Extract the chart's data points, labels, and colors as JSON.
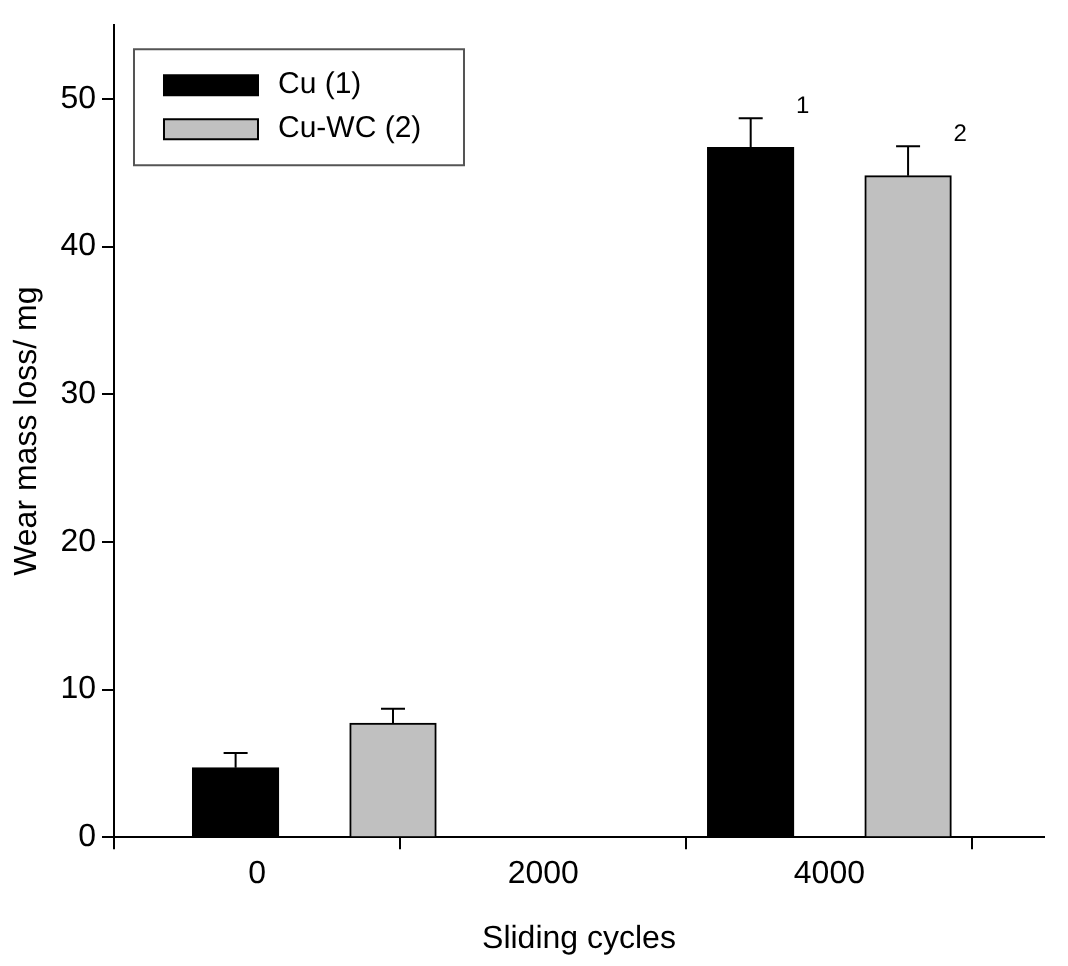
{
  "chart_data": {
    "type": "bar",
    "xlabel": "Sliding cycles",
    "ylabel": "Wear mass loss/ mg",
    "series": [
      {
        "name": "Cu (1)",
        "color": "#000000",
        "x": [
          -150,
          3450
        ],
        "values": [
          4.7,
          46.7
        ],
        "errors": [
          [
            4.7,
            5.7
          ],
          [
            46.7,
            48.7
          ]
        ]
      },
      {
        "name": "Cu-WC (2)",
        "color": "#c0c0c0",
        "x": [
          950,
          4550
        ],
        "values": [
          7.7,
          44.8
        ],
        "errors": [
          [
            7.7,
            8.7
          ],
          [
            44.8,
            46.8
          ]
        ]
      }
    ],
    "xlim": [
      -1000,
      5500
    ],
    "xticks": [
      0,
      2000,
      4000
    ],
    "ylim": [
      0,
      55
    ],
    "yticks": [
      0,
      10,
      20,
      30,
      40,
      50
    ],
    "annotations": [
      "1",
      "2"
    ],
    "grid": false,
    "legend": "top left"
  }
}
